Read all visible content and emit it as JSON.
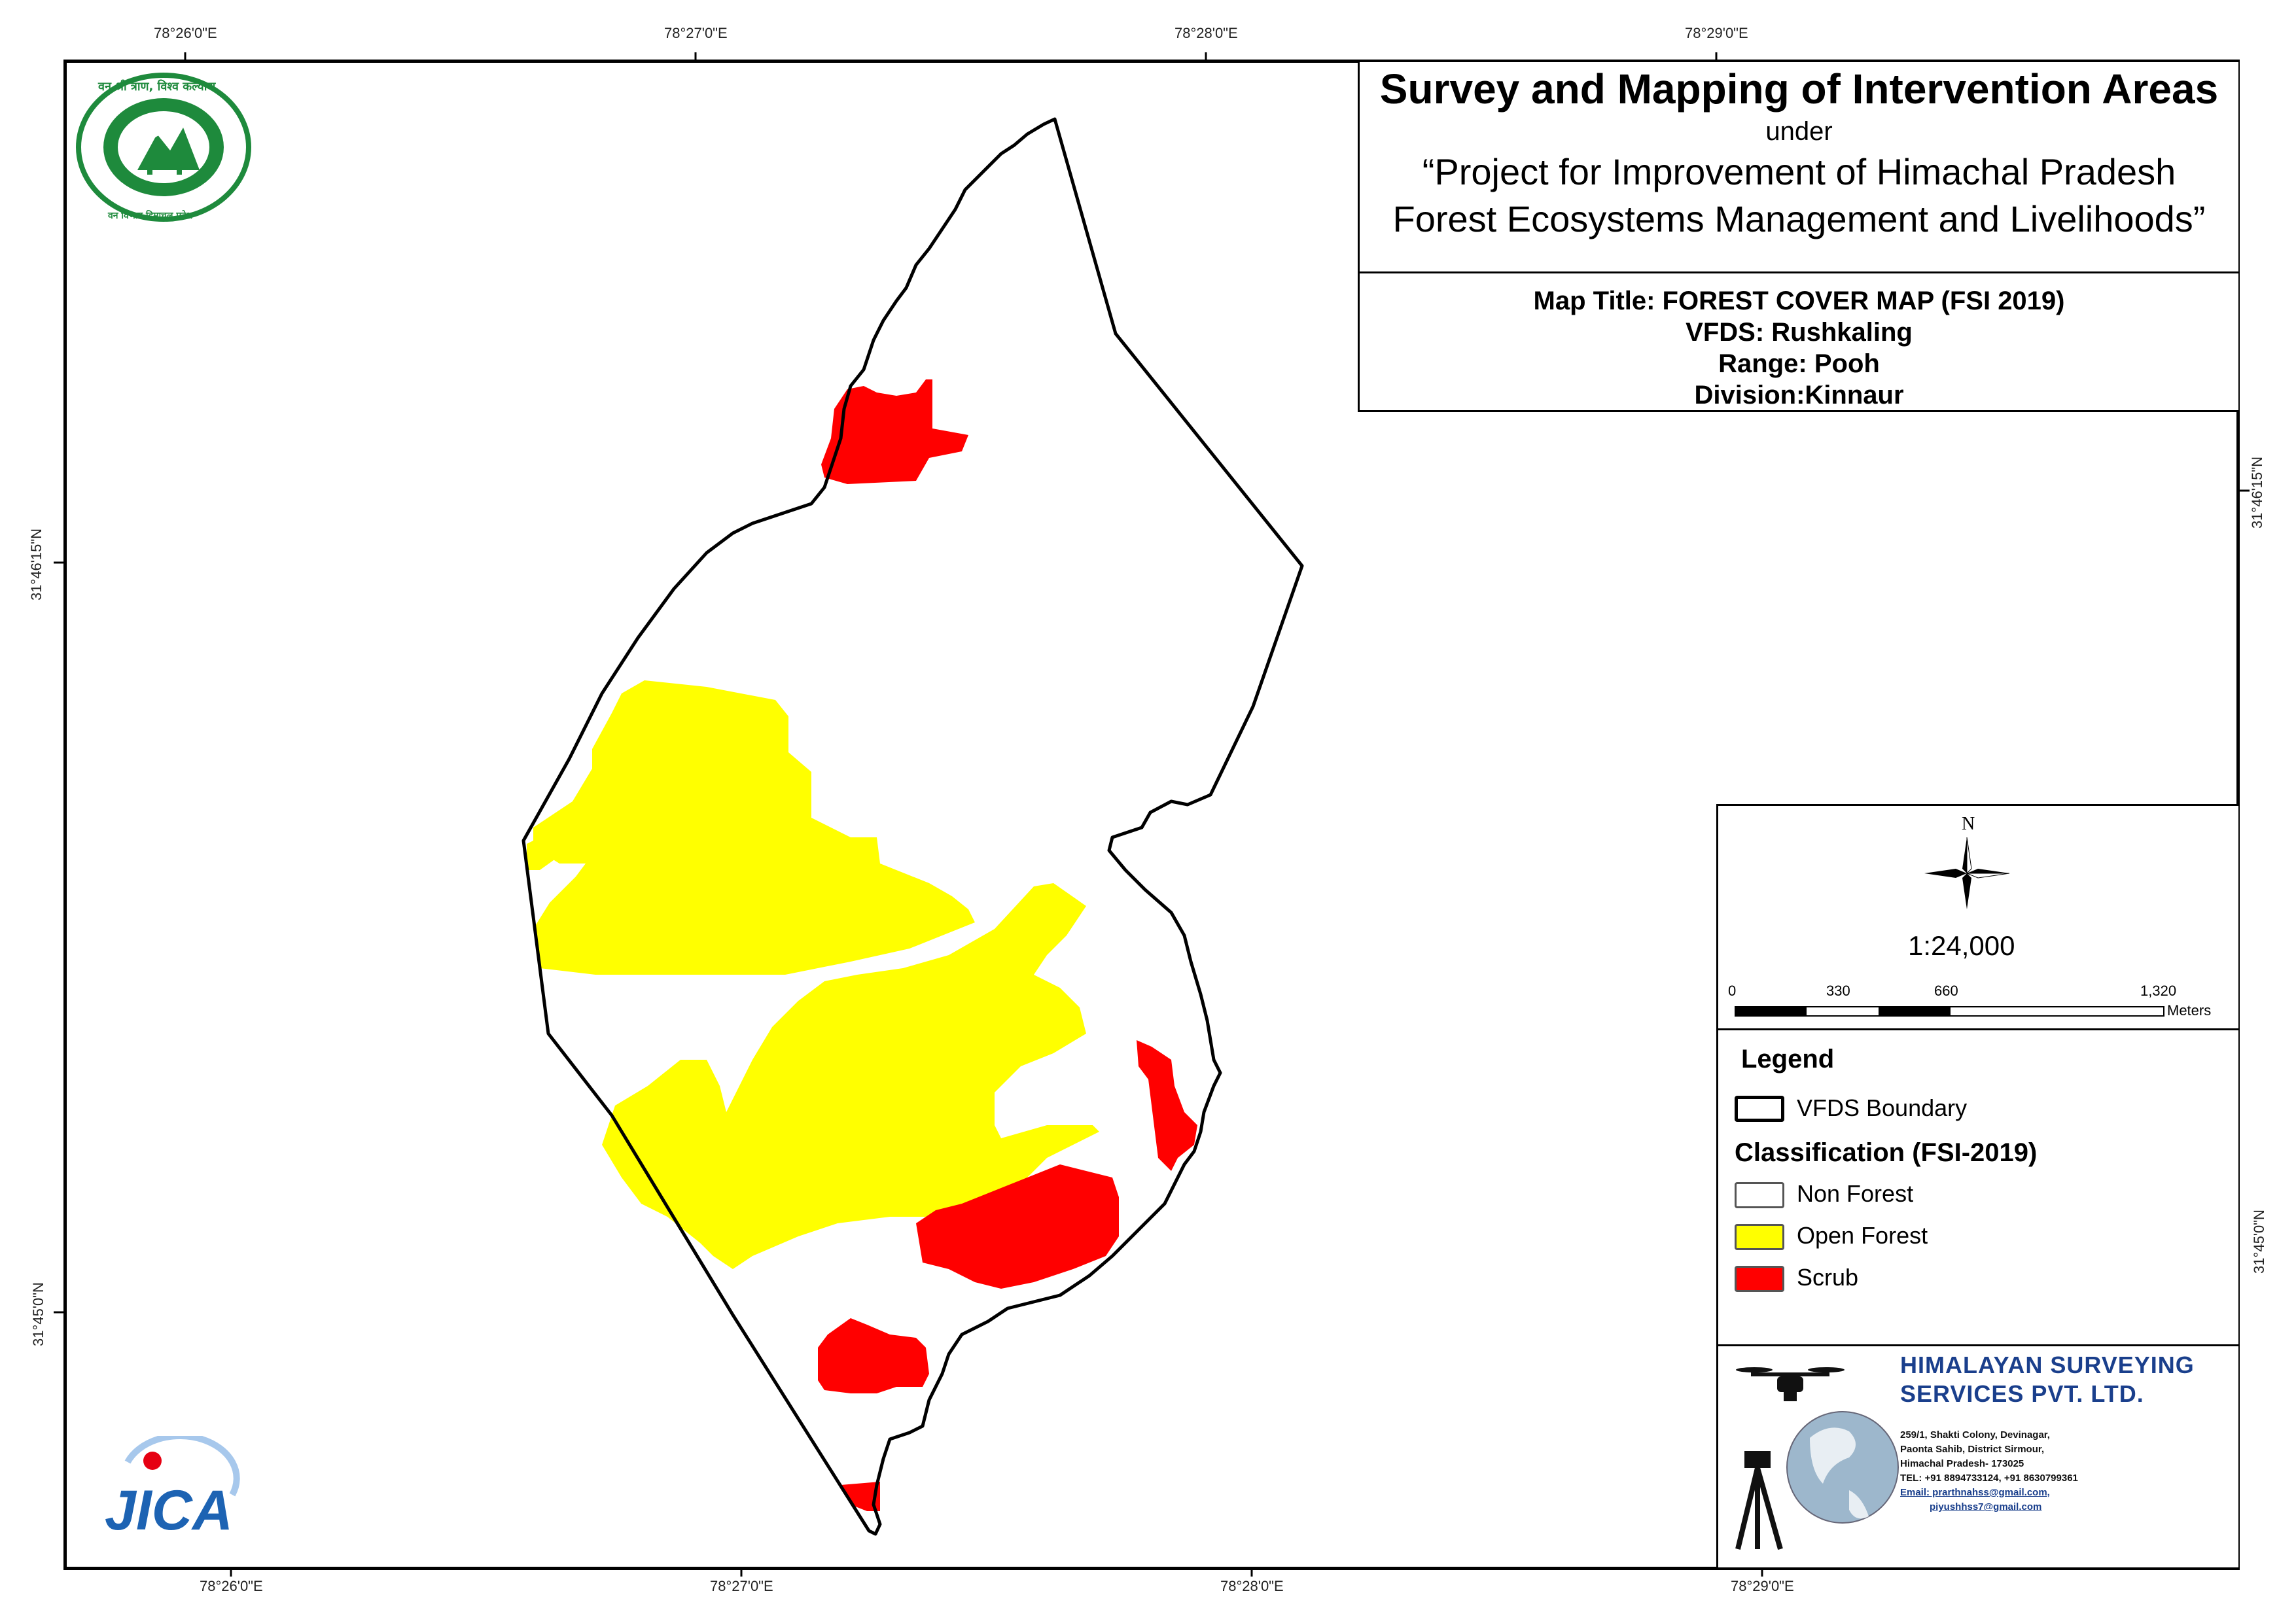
{
  "coords": {
    "top": [
      "78°26'0\"E",
      "78°27'0\"E",
      "78°28'0\"E",
      "78°29'0\"E"
    ],
    "bottom": [
      "78°26'0\"E",
      "78°27'0\"E",
      "78°28'0\"E",
      "78°29'0\"E"
    ],
    "left": [
      "31°46'15\"N",
      "31°45'0\"N"
    ],
    "right": [
      "31°46'15\"N",
      "31°45'0\"N"
    ]
  },
  "title": {
    "main": "Survey and Mapping of Intervention Areas",
    "under": "under",
    "project_line1": "“Project for Improvement of Himachal Pradesh",
    "project_line2": "Forest Ecosystems Management and Livelihoods”"
  },
  "map_info": {
    "map_title": "Map Title: FOREST COVER MAP (FSI 2019)",
    "vfds": "VFDS: Rushkaling",
    "range": "Range: Pooh",
    "division": "Division:Kinnaur"
  },
  "north_arrow": {
    "label": "N",
    "icon": "north-arrow-icon"
  },
  "scale": {
    "ratio": "1:24,000",
    "ticks": [
      "0",
      "330",
      "660",
      "1,320"
    ],
    "unit": "Meters"
  },
  "legend": {
    "heading": "Legend",
    "boundary_label": "VFDS Boundary",
    "classification_heading": "Classification (FSI-2019)",
    "classes": [
      {
        "label": "Non Forest",
        "color": "#ffffff"
      },
      {
        "label": "Open Forest",
        "color": "#ffff00"
      },
      {
        "label": "Scrub",
        "color": "#ff0000"
      }
    ]
  },
  "company": {
    "name_line1": "HIMALAYAN SURVEYING",
    "name_line2": "SERVICES PVT. LTD.",
    "address": [
      "259/1, Shakti Colony, Devinagar,",
      "Paonta Sahib, District Sirmour,",
      "Himachal Pradesh- 173025",
      "TEL: +91 8894733124, +91 8630799361",
      "Email: prarthnahss@gmail.com,",
      "piyushhss7@gmail.com"
    ]
  },
  "logos": {
    "forest_dept_top_text": "वन श्री त्राण, विश्व कल्याण",
    "forest_dept_bottom_text": "वन विभाग हिमाचल प्रदेश",
    "jica_text": "JICA"
  },
  "colors": {
    "open_forest": "#ffff00",
    "scrub": "#ff0000",
    "boundary": "#000000",
    "forest_logo_green": "#1e8a3c",
    "company_blue": "#1a3f8c"
  }
}
